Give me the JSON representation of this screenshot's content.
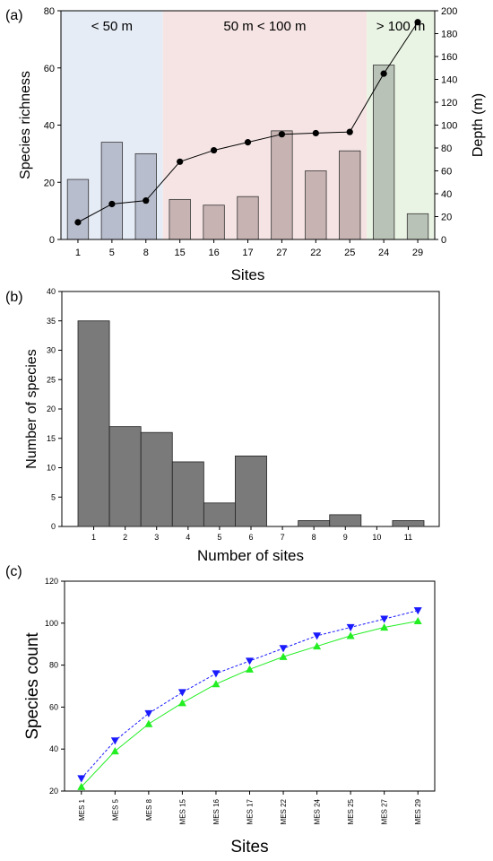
{
  "chart_data": [
    {
      "panel_label": "(a)",
      "type": "bar",
      "xlabel": "Sites",
      "ylabel": "Species richness",
      "y2label": "Depth (m)",
      "categories": [
        "1",
        "5",
        "8",
        "15",
        "16",
        "17",
        "27",
        "22",
        "25",
        "24",
        "29"
      ],
      "ylim": [
        0,
        80
      ],
      "yticks": [
        0,
        20,
        40,
        60,
        80
      ],
      "y2lim": [
        0,
        200
      ],
      "y2ticks": [
        0,
        20,
        40,
        60,
        80,
        100,
        120,
        140,
        160,
        180,
        200
      ],
      "series": [
        {
          "type": "bar",
          "values": [
            21,
            34,
            30,
            14,
            12,
            15,
            38,
            24,
            31,
            61,
            9
          ]
        },
        {
          "type": "line",
          "axis": "right",
          "values": [
            15,
            31,
            34,
            68,
            78,
            85,
            92,
            93,
            94,
            145,
            190
          ]
        }
      ],
      "zones": [
        {
          "label": "< 50 m",
          "from": 0,
          "to": 2,
          "color": "#e6ecf6",
          "bar_color": "#b7bdcc"
        },
        {
          "label": "50 m < 100 m",
          "from": 3,
          "to": 8,
          "color": "#f6e4e4",
          "bar_color": "#c8b3b3"
        },
        {
          "label": "> 100 m",
          "from": 9,
          "to": 10,
          "color": "#eaf4e4",
          "bar_color": "#b9c2b6"
        }
      ]
    },
    {
      "panel_label": "(b)",
      "type": "bar",
      "xlabel": "Number of sites",
      "ylabel": "Number of species",
      "categories": [
        "1",
        "2",
        "3",
        "4",
        "5",
        "6",
        "7",
        "8",
        "9",
        "10",
        "11"
      ],
      "values": [
        35,
        17,
        16,
        11,
        4,
        12,
        0,
        1,
        2,
        0,
        1
      ],
      "ylim": [
        0,
        40
      ],
      "yticks": [
        0,
        5,
        10,
        15,
        20,
        25,
        30,
        35,
        40
      ],
      "bar_color": "#7a7a7a"
    },
    {
      "panel_label": "(c)",
      "type": "line",
      "xlabel": "Sites",
      "ylabel": "Species count",
      "categories": [
        "MES 1",
        "MES 5",
        "MES 8",
        "MES 15",
        "MES 16",
        "MES 17",
        "MES 22",
        "MES 24",
        "MES 25",
        "MES 27",
        "MES 29"
      ],
      "ylim": [
        20,
        120
      ],
      "yticks": [
        20,
        40,
        60,
        80,
        100,
        120
      ],
      "series": [
        {
          "color": "#1a1aff",
          "marker": "triangle-down",
          "values": [
            26,
            44,
            57,
            67,
            76,
            82,
            88,
            94,
            98,
            102,
            106
          ]
        },
        {
          "color": "#22ee22",
          "marker": "triangle-up",
          "values": [
            22,
            39,
            52,
            62,
            71,
            78,
            84,
            89,
            94,
            98,
            101
          ]
        }
      ]
    }
  ]
}
